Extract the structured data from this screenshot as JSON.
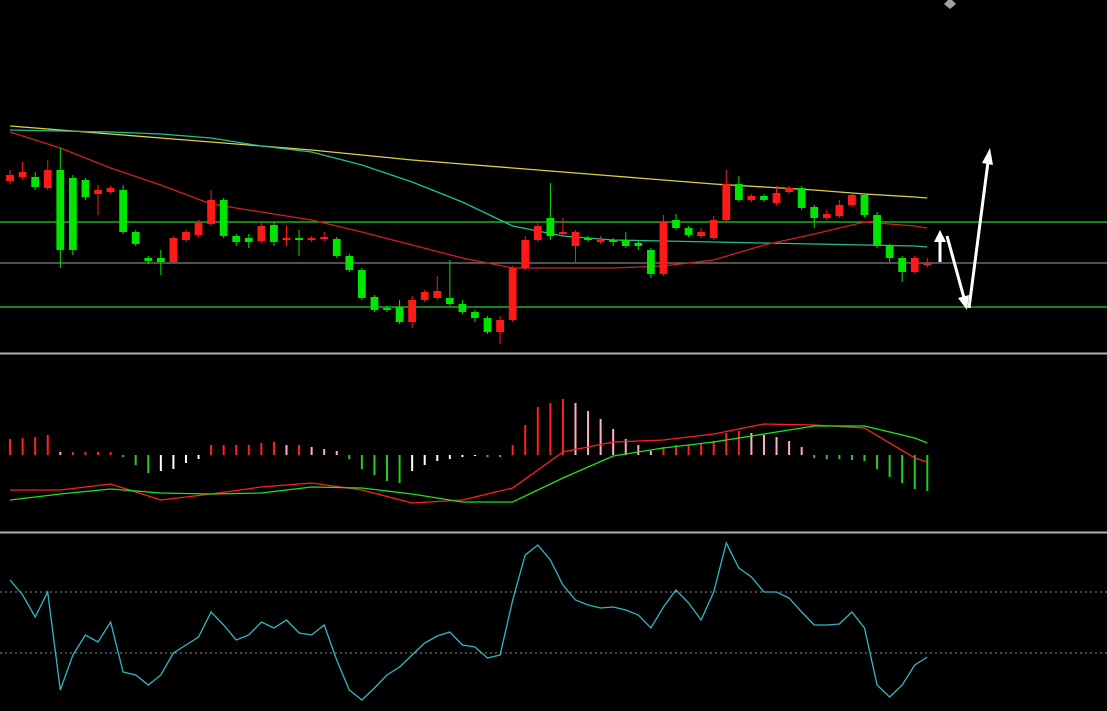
{
  "chart_data": [
    {
      "type": "candlestick",
      "xlim": [
        -0.8,
        87.3
      ],
      "ylim": [
        0,
        352
      ],
      "up_color": "#ff1a1a",
      "down_color": "#00e600",
      "open": [
        171,
        175,
        175,
        164,
        182,
        174,
        172,
        158,
        160,
        162,
        120,
        94,
        94,
        90,
        112,
        117,
        128,
        152,
        116,
        114,
        111,
        127,
        112,
        114,
        112,
        113,
        113,
        96,
        82,
        55,
        44,
        45,
        30,
        52,
        54,
        54,
        48,
        40,
        34,
        20,
        32,
        84,
        112,
        134,
        118,
        106,
        114,
        110,
        112,
        112,
        109,
        102,
        78,
        132,
        124,
        116,
        114,
        132,
        168,
        152,
        156,
        149,
        160,
        164,
        145,
        134,
        136,
        147,
        157,
        137,
        106,
        94,
        80,
        87
      ],
      "close": [
        177,
        180,
        165,
        182,
        102,
        102,
        155,
        162,
        164,
        120,
        108,
        91,
        90,
        114,
        120,
        129,
        152,
        116,
        110,
        110,
        126,
        110,
        114,
        112,
        114,
        115,
        96,
        82,
        54,
        42,
        42,
        30,
        52,
        60,
        61,
        48,
        40,
        34,
        20,
        32,
        84,
        112,
        126,
        116,
        120,
        120,
        112,
        112,
        110,
        106,
        106,
        78,
        130,
        124,
        117,
        120,
        132,
        168,
        152,
        156,
        152,
        159,
        164,
        144,
        134,
        138,
        147,
        157,
        137,
        106,
        94,
        80,
        94,
        89
      ],
      "high": [
        182,
        190,
        180,
        192,
        204,
        177,
        174,
        167,
        166,
        167,
        122,
        96,
        102,
        116,
        122,
        132,
        162,
        154,
        118,
        118,
        130,
        130,
        126,
        122,
        116,
        120,
        115,
        98,
        84,
        57,
        46,
        52,
        56,
        62,
        76,
        92,
        52,
        42,
        36,
        36,
        86,
        116,
        130,
        169,
        134,
        122,
        116,
        116,
        114,
        120,
        111,
        104,
        137,
        138,
        126,
        124,
        136,
        182,
        176,
        158,
        158,
        166,
        166,
        166,
        147,
        142,
        152,
        159,
        159,
        140,
        108,
        96,
        96,
        94
      ],
      "low": [
        168,
        172,
        162,
        162,
        84,
        97,
        152,
        137,
        158,
        118,
        106,
        88,
        77,
        88,
        110,
        115,
        126,
        114,
        106,
        104,
        109,
        106,
        106,
        96,
        110,
        111,
        94,
        80,
        52,
        40,
        40,
        28,
        24,
        50,
        52,
        46,
        38,
        30,
        18,
        8,
        30,
        82,
        110,
        112,
        116,
        90,
        110,
        108,
        106,
        104,
        102,
        74,
        76,
        122,
        115,
        114,
        112,
        130,
        150,
        150,
        150,
        147,
        158,
        142,
        124,
        132,
        134,
        145,
        135,
        104,
        90,
        70,
        78,
        85
      ],
      "series": [
        {
          "color": "#e0d040",
          "x": [
            0,
            4,
            8,
            12,
            16,
            20,
            24,
            28,
            32,
            36,
            40,
            44,
            48,
            52,
            56,
            60,
            64,
            68,
            72,
            73
          ],
          "values": [
            226,
            222,
            218,
            214,
            210,
            206,
            202,
            197,
            192,
            188,
            184,
            180,
            176,
            172,
            168,
            165,
            162,
            158,
            155,
            154
          ]
        },
        {
          "color": "#20c090",
          "x": [
            0,
            4,
            8,
            12,
            16,
            20,
            24,
            28,
            32,
            36,
            40,
            44,
            48,
            52,
            56,
            60,
            64,
            68,
            72,
            73
          ],
          "values": [
            222,
            221,
            220,
            218,
            214,
            206,
            200,
            187,
            170,
            150,
            126,
            116,
            112,
            111,
            110,
            109,
            108,
            107,
            106,
            105
          ]
        },
        {
          "color": "#d02020",
          "x": [
            0,
            4,
            8,
            12,
            16,
            20,
            24,
            28,
            32,
            36,
            40,
            44,
            48,
            52,
            56,
            60,
            64,
            68,
            72,
            73
          ],
          "values": [
            220,
            204,
            184,
            167,
            148,
            140,
            132,
            120,
            107,
            94,
            84,
            84,
            84,
            86,
            92,
            107,
            118,
            130,
            126,
            124
          ]
        }
      ],
      "hlines": [
        {
          "value": 130,
          "color": "#20d020"
        },
        {
          "value": 89,
          "color": "#808080"
        },
        {
          "value": 45,
          "color": "#20d020"
        }
      ]
    },
    {
      "type": "macd",
      "xlim": [
        -0.8,
        87.3
      ],
      "ylim": [
        -75,
        100
      ],
      "bar_colors": {
        "rise_positive": "#ff2020",
        "fall_positive": "#ffb0c0",
        "fall_negative": "#20d020",
        "rise_negative": "#ffffff"
      },
      "values": [
        16,
        17,
        18,
        20,
        3,
        3,
        3,
        3,
        3,
        -2,
        -10,
        -18,
        -16,
        -14,
        -8,
        -4,
        10,
        10,
        10,
        10,
        12,
        13,
        10,
        10,
        8,
        6,
        4,
        -4,
        -14,
        -20,
        -26,
        -28,
        -16,
        -10,
        -6,
        -4,
        -2,
        -1,
        -2,
        -2,
        10,
        30,
        48,
        52,
        56,
        52,
        44,
        36,
        26,
        16,
        10,
        4,
        8,
        10,
        10,
        12,
        14,
        22,
        24,
        22,
        20,
        18,
        14,
        8,
        -3,
        -4,
        -4,
        -5,
        -6,
        -14,
        -22,
        -28,
        -34,
        -36
      ],
      "series": [
        {
          "color": "#ff2020",
          "x": [
            0,
            4,
            8,
            12,
            16,
            20,
            24,
            28,
            32,
            36,
            40,
            44,
            48,
            52,
            56,
            60,
            64,
            68,
            72,
            73
          ],
          "values": [
            -35,
            -35,
            -29,
            -45,
            -39,
            -32,
            -28,
            -35,
            -48,
            -45,
            -33,
            3,
            13,
            15,
            21,
            31,
            30,
            27,
            -3,
            -7
          ]
        },
        {
          "color": "#20e020",
          "x": [
            0,
            4,
            8,
            12,
            16,
            20,
            24,
            28,
            32,
            36,
            40,
            44,
            48,
            52,
            56,
            60,
            64,
            68,
            72,
            73
          ],
          "values": [
            -45,
            -39,
            -34,
            -38,
            -39,
            -38,
            -32,
            -33,
            -39,
            -47,
            -47,
            -23,
            -1,
            7,
            13,
            21,
            29,
            29,
            17,
            12
          ]
        }
      ]
    },
    {
      "type": "line",
      "xlim": [
        -0.8,
        87.3
      ],
      "ylim": [
        0,
        176
      ],
      "levels": [
        119,
        58
      ],
      "level_color": "#909090",
      "series": [
        {
          "color": "#30b8c8",
          "values": [
            131,
            116,
            94,
            119,
            21,
            56,
            76,
            69,
            89,
            39,
            36,
            26,
            36,
            58,
            66,
            74,
            99,
            86,
            71,
            76,
            89,
            83,
            91,
            78,
            76,
            86,
            51,
            21,
            11,
            23,
            36,
            44,
            56,
            68,
            75,
            79,
            66,
            64,
            53,
            56,
            111,
            156,
            166,
            151,
            126,
            111,
            106,
            103,
            104,
            101,
            96,
            83,
            104,
            121,
            108,
            91,
            119,
            168,
            143,
            134,
            119,
            119,
            113,
            99,
            86,
            86,
            87,
            99,
            83,
            26,
            14,
            26,
            46,
            54
          ]
        }
      ]
    }
  ]
}
